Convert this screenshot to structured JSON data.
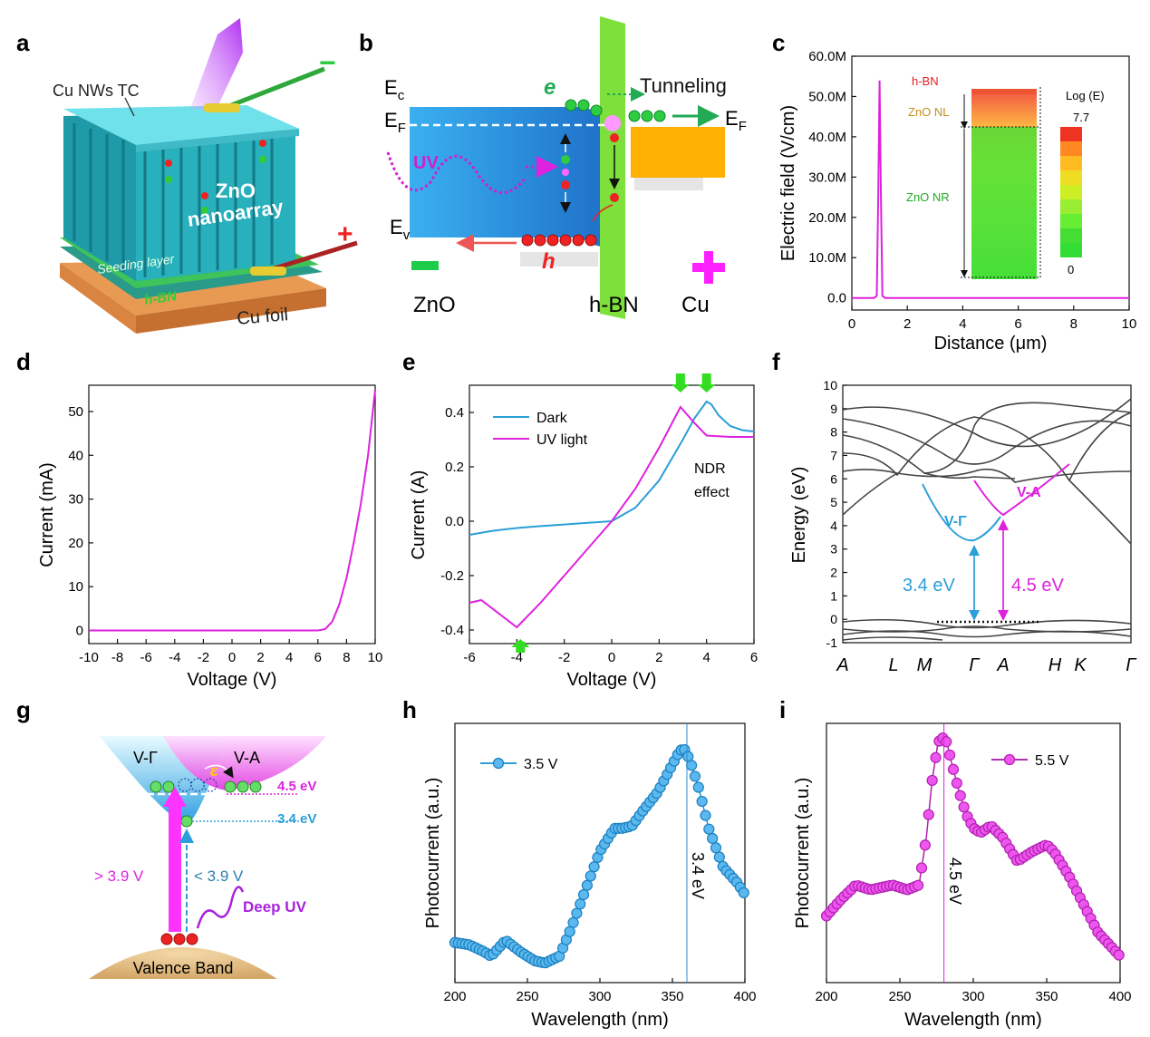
{
  "panels": {
    "a": {
      "letter": "a",
      "labels": {
        "top_electrode": "Cu NWs TC",
        "array": "ZnO",
        "array2": "nanoarray",
        "seed": "Seeding layer",
        "hbn": "h-BN",
        "foil": "Cu foil",
        "minus": "−",
        "plus": "+"
      },
      "colors": {
        "pillar": "#2fb8c2",
        "top": "#6ee0e8",
        "seed": "#38c25a",
        "foil": "#e0904a",
        "uv": "#c040ff"
      }
    },
    "b": {
      "letter": "b",
      "labels": {
        "Ec": "E",
        "Ec_sub": "c",
        "EF_left": "E",
        "EF_left_sub": "F",
        "Ev": "E",
        "Ev_sub": "v",
        "EF_right": "E",
        "EF_right_sub": "F",
        "uv": "UV",
        "e": "e",
        "h": "h",
        "tunneling": "Tunneling",
        "zno": "ZnO",
        "hbn": "h-BN",
        "cu": "Cu"
      },
      "colors": {
        "zno": "#1e90e0",
        "hbn": "#7ee03a",
        "cu": "#ffb000",
        "uv": "#d020d0",
        "electron": "#2ecc40",
        "hole": "#ee2020",
        "plus": "#ff20ff",
        "minus": "#1ecc4a"
      }
    },
    "c": {
      "letter": "c",
      "xlabel": "Distance (μm)",
      "ylabel": "Electric field (V/cm)",
      "inset": {
        "hbn": "h-BN",
        "znonl": "ZnO NL",
        "znonr": "ZnO NR",
        "legend_title": "Log (E)",
        "max": "7.7",
        "min": "0"
      }
    },
    "d": {
      "letter": "d",
      "xlabel": "Voltage (V)",
      "ylabel": "Current (mA)"
    },
    "e": {
      "letter": "e",
      "xlabel": "Voltage (V)",
      "ylabel": "Current (A)",
      "annotation": "NDR",
      "annotation2": "effect"
    },
    "f": {
      "letter": "f",
      "ylabel": "Energy (eV)",
      "kpoints": [
        "A",
        "L",
        "M",
        "Γ",
        "A",
        "H",
        "K",
        "Γ"
      ],
      "labels": {
        "vgamma": "V-Γ",
        "va": "V-A",
        "gap1": "3.4 eV",
        "gap2": "4.5 eV"
      }
    },
    "g": {
      "letter": "g",
      "labels": {
        "vgamma": "V-Γ",
        "va": "V-A",
        "eps": "ε",
        "e45": "4.5 eV",
        "e34": "3.4 eV",
        "gt": "> 3.9 V",
        "lt": "< 3.9 V",
        "deepuv": "Deep UV",
        "vb": "Valence Band"
      }
    },
    "h": {
      "letter": "h",
      "xlabel": "Wavelength (nm)",
      "ylabel": "Photocurrent (a.u.)",
      "marker_label": "3.4 eV"
    },
    "i": {
      "letter": "i",
      "xlabel": "Wavelength (nm)",
      "ylabel": "Photocurrent (a.u.)",
      "marker_label": "4.5 eV"
    }
  },
  "colors": {
    "magenta": "#dd22dd",
    "blue": "#2a9fd8",
    "band": "#444444",
    "arrowgreen": "#33dd22"
  },
  "chart_data": [
    {
      "id": "c",
      "type": "line",
      "x": [
        0,
        0.8,
        0.9,
        0.95,
        1.0,
        1.05,
        1.1,
        1.2,
        2,
        4,
        6,
        8,
        10
      ],
      "series": [
        {
          "values": [
            0,
            0,
            0.5,
            25,
            54,
            25,
            0.5,
            0,
            0,
            0,
            0,
            0,
            0
          ]
        }
      ],
      "xlim": [
        0,
        10
      ],
      "ylim": [
        -3,
        60
      ],
      "xticks": [
        0,
        2,
        4,
        6,
        8,
        10
      ],
      "xtick_labels": [
        "0",
        "2",
        "4",
        "6",
        "8",
        "10"
      ],
      "yticks": [
        0,
        10,
        20,
        30,
        40,
        50,
        60
      ],
      "ytick_labels": [
        "0.0",
        "10.0M",
        "20.0M",
        "30.0M",
        "40.0M",
        "50.0M",
        "60.0M"
      ],
      "xlabel": "Distance (μm)",
      "ylabel": "Electric field (V/cm)"
    },
    {
      "id": "d",
      "type": "line",
      "x": [
        -10,
        -4,
        0,
        4,
        6,
        6.5,
        7,
        7.5,
        8,
        8.5,
        9,
        9.5,
        10
      ],
      "series": [
        {
          "values": [
            0,
            0,
            0,
            0,
            0,
            0.3,
            2,
            6,
            12,
            20,
            29,
            40,
            55
          ]
        }
      ],
      "xlim": [
        -10,
        10
      ],
      "ylim": [
        -3,
        56
      ],
      "xticks": [
        -10,
        -8,
        -6,
        -4,
        -2,
        0,
        2,
        4,
        6,
        8,
        10
      ],
      "xtick_labels": [
        "-10",
        "-8",
        "-6",
        "-4",
        "-2",
        "0",
        "2",
        "4",
        "6",
        "8",
        "10"
      ],
      "yticks": [
        0,
        10,
        20,
        30,
        40,
        50
      ],
      "ytick_labels": [
        "0",
        "10",
        "20",
        "30",
        "40",
        "50"
      ],
      "xlabel": "Voltage (V)",
      "ylabel": "Current (mA)"
    },
    {
      "id": "e",
      "type": "line",
      "xlim": [
        -6,
        6
      ],
      "ylim": [
        -0.45,
        0.5
      ],
      "xticks": [
        -6,
        -4,
        -2,
        0,
        2,
        4,
        6
      ],
      "xtick_labels": [
        "-6",
        "-4",
        "-2",
        "0",
        "2",
        "4",
        "6"
      ],
      "yticks": [
        -0.4,
        -0.2,
        0.0,
        0.2,
        0.4
      ],
      "ytick_labels": [
        "-0.4",
        "-0.2",
        "0.0",
        "0.2",
        "0.4"
      ],
      "xlabel": "Voltage (V)",
      "ylabel": "Current (A)",
      "legend": "top-left",
      "series": [
        {
          "name": "Dark",
          "x": [
            -6,
            -5,
            -4,
            -3,
            -2,
            -1,
            0,
            1,
            2,
            3,
            3.5,
            4,
            4.2,
            4.5,
            5,
            5.5,
            6
          ],
          "values": [
            -0.05,
            -0.035,
            -0.025,
            -0.018,
            -0.012,
            -0.006,
            0.0,
            0.05,
            0.15,
            0.3,
            0.38,
            0.44,
            0.43,
            0.39,
            0.35,
            0.335,
            0.33
          ]
        },
        {
          "name": "UV light",
          "x": [
            -6,
            -5.5,
            -4,
            -3,
            -2,
            -1,
            0,
            1,
            2,
            2.9,
            3.5,
            4,
            5,
            6
          ],
          "values": [
            -0.3,
            -0.29,
            -0.39,
            -0.3,
            -0.2,
            -0.1,
            0.0,
            0.12,
            0.27,
            0.42,
            0.36,
            0.315,
            0.31,
            0.31
          ]
        }
      ]
    },
    {
      "id": "h",
      "type": "line",
      "xlim": [
        200,
        400
      ],
      "xticks": [
        200,
        250,
        300,
        350,
        400
      ],
      "xtick_labels": [
        "200",
        "250",
        "300",
        "350",
        "400"
      ],
      "xlabel": "Wavelength (nm)",
      "ylabel": "Photocurrent (a.u.)",
      "legend": "top-left",
      "marker_x": 360,
      "series": [
        {
          "name": "3.5 V",
          "x": [
            200,
            210,
            220,
            225,
            235,
            245,
            255,
            262,
            272,
            280,
            290,
            300,
            310,
            315,
            322,
            330,
            340,
            350,
            355,
            358,
            362,
            368,
            375,
            385,
            395,
            400
          ],
          "values": [
            0.12,
            0.11,
            0.08,
            0.06,
            0.13,
            0.08,
            0.04,
            0.03,
            0.06,
            0.18,
            0.35,
            0.52,
            0.62,
            0.62,
            0.63,
            0.7,
            0.78,
            0.9,
            0.96,
            0.97,
            0.92,
            0.8,
            0.62,
            0.45,
            0.38,
            0.33
          ]
        }
      ]
    },
    {
      "id": "i",
      "type": "line",
      "xlim": [
        200,
        400
      ],
      "xticks": [
        200,
        250,
        300,
        350,
        400
      ],
      "xtick_labels": [
        "200",
        "250",
        "300",
        "350",
        "400"
      ],
      "xlabel": "Wavelength (nm)",
      "ylabel": "Photocurrent (a.u.)",
      "legend": "top-right",
      "marker_x": 280,
      "series": [
        {
          "name": "5.5 V",
          "x": [
            200,
            210,
            220,
            230,
            245,
            255,
            263,
            268,
            272,
            276,
            279,
            282,
            285,
            290,
            295,
            300,
            305,
            312,
            320,
            330,
            340,
            350,
            355,
            365,
            375,
            385,
            400
          ],
          "values": [
            0.25,
            0.32,
            0.38,
            0.36,
            0.38,
            0.36,
            0.38,
            0.58,
            0.82,
            0.98,
            1.0,
            0.98,
            0.9,
            0.78,
            0.68,
            0.62,
            0.6,
            0.63,
            0.58,
            0.48,
            0.52,
            0.55,
            0.52,
            0.42,
            0.3,
            0.18,
            0.08
          ]
        }
      ]
    }
  ]
}
